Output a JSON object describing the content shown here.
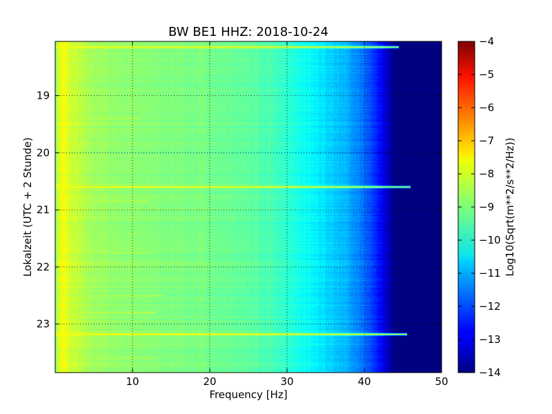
{
  "chart_data": {
    "type": "heatmap",
    "title": "BW BE1 HHZ: 2018-10-24",
    "xlabel": "Frequency [Hz]",
    "ylabel": "Lokalzeit (UTC + 2 Stunde)",
    "xlim": [
      0,
      50
    ],
    "ylim": [
      18.05,
      23.85
    ],
    "y_inverted": true,
    "x_ticks": [
      10,
      20,
      30,
      40,
      50
    ],
    "x_tick_labels": [
      "10",
      "20",
      "30",
      "40",
      "50"
    ],
    "y_ticks": [
      19,
      20,
      21,
      22,
      23
    ],
    "y_tick_labels": [
      "19",
      "20",
      "21",
      "22",
      "23"
    ],
    "grid": true,
    "colormap": "jet",
    "colorbar": {
      "label": "Log10(Sqrt(m**2/s**2/Hz))",
      "range": [
        -14,
        -4
      ],
      "ticks": [
        -4,
        -5,
        -6,
        -7,
        -8,
        -9,
        -10,
        -11,
        -12,
        -13,
        -14
      ],
      "tick_labels": [
        "−4",
        "−5",
        "−6",
        "−7",
        "−8",
        "−9",
        "−10",
        "−11",
        "−12",
        "−13",
        "−14"
      ]
    },
    "spectral_profile": {
      "frequency_hz": [
        0,
        0.5,
        1,
        2,
        5,
        10,
        15,
        20,
        25,
        28,
        30,
        32,
        34,
        36,
        38,
        40,
        42,
        43,
        44,
        46,
        50
      ],
      "log10_amplitude": [
        -9.2,
        -8.0,
        -7.8,
        -8.2,
        -8.7,
        -8.9,
        -9.0,
        -9.1,
        -9.3,
        -9.5,
        -9.8,
        -10.1,
        -10.4,
        -10.7,
        -11.1,
        -11.7,
        -12.6,
        -13.4,
        -14.0,
        -14.0,
        -14.0
      ]
    },
    "transient_events": [
      {
        "time_h": 18.15,
        "fmax_hz": 44.5,
        "log10_amplitude": -7.9
      },
      {
        "time_h": 20.6,
        "fmax_hz": 46.0,
        "log10_amplitude": -7.8
      },
      {
        "time_h": 23.18,
        "fmax_hz": 45.5,
        "log10_amplitude": -7.7
      },
      {
        "time_h": 20.85,
        "fmax_hz": 12.0,
        "log10_amplitude": -8.5
      },
      {
        "time_h": 22.8,
        "fmax_hz": 13.0,
        "log10_amplitude": -8.4
      },
      {
        "time_h": 22.5,
        "fmax_hz": 14.0,
        "log10_amplitude": -8.6
      },
      {
        "time_h": 23.6,
        "fmax_hz": 13.0,
        "log10_amplitude": -8.6
      },
      {
        "time_h": 19.4,
        "fmax_hz": 11.0,
        "log10_amplitude": -8.5
      },
      {
        "time_h": 21.75,
        "fmax_hz": 12.0,
        "log10_amplitude": -8.6
      }
    ]
  }
}
